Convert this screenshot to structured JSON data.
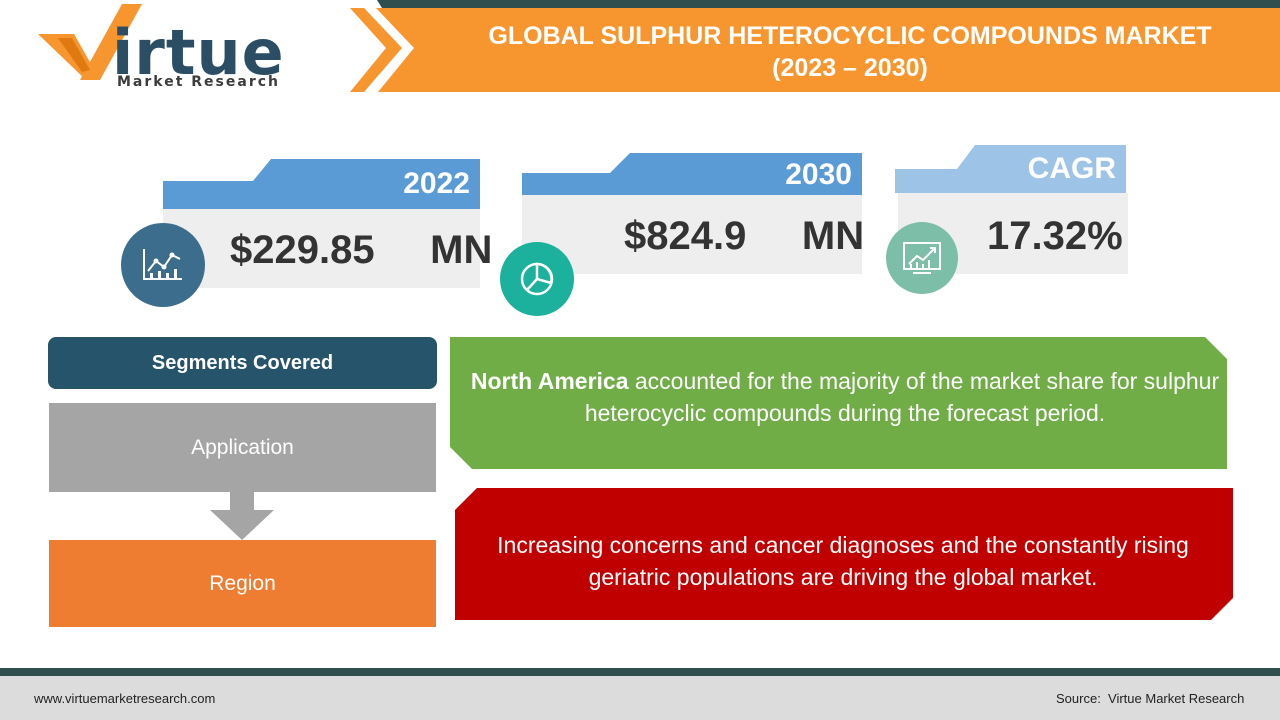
{
  "brand": {
    "logo_word": "irtue",
    "logo_sub": "Market Research"
  },
  "header": {
    "title_line1": "GLOBAL SULPHUR HETEROCYCLIC COMPOUNDS MARKET",
    "title_line2": "(2023 – 2030)"
  },
  "stats": [
    {
      "label": "2022",
      "value": "$229.85     MN",
      "icon": "line-chart-icon"
    },
    {
      "label": "2030",
      "value": "$824.9     MN",
      "icon": "pie-chart-icon"
    },
    {
      "label": "CAGR",
      "value": "17.32%",
      "icon": "growth-chart-icon"
    }
  ],
  "segments": {
    "title": "Segments Covered",
    "items": [
      "Application",
      "Region"
    ]
  },
  "insights": {
    "region_bold": "North America",
    "region_text": " accounted for the majority of the market share for sulphur heterocyclic compounds during the forecast period.",
    "driver_text": "Increasing concerns and cancer diagnoses and the constantly rising geriatric populations are driving the global market."
  },
  "footer": {
    "url": "www.virtuemarketresearch.com",
    "source": "Source:  Virtue Market Research"
  },
  "colors": {
    "header_orange": "#f7962e",
    "dark_teal": "#2f4f4f",
    "card_blue": "#5b9bd5",
    "cagr_blue": "#9dc3e6",
    "green": "#70ad47",
    "red": "#c00000",
    "region_orange": "#ee7d31",
    "grey": "#a5a5a5"
  }
}
